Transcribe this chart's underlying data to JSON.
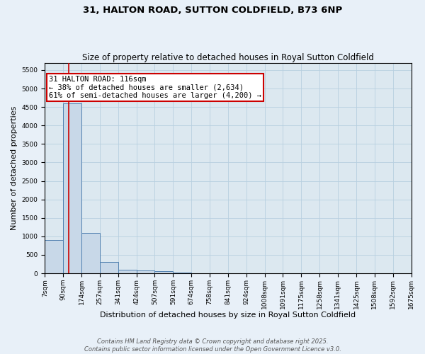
{
  "title": "31, HALTON ROAD, SUTTON COLDFIELD, B73 6NP",
  "subtitle": "Size of property relative to detached houses in Royal Sutton Coldfield",
  "xlabel": "Distribution of detached houses by size in Royal Sutton Coldfield",
  "ylabel": "Number of detached properties",
  "bin_labels": [
    "7sqm",
    "90sqm",
    "174sqm",
    "257sqm",
    "341sqm",
    "424sqm",
    "507sqm",
    "591sqm",
    "674sqm",
    "758sqm",
    "841sqm",
    "924sqm",
    "1008sqm",
    "1091sqm",
    "1175sqm",
    "1258sqm",
    "1341sqm",
    "1425sqm",
    "1508sqm",
    "1592sqm",
    "1675sqm"
  ],
  "bar_values": [
    900,
    4600,
    1100,
    300,
    90,
    70,
    50,
    30,
    0,
    0,
    0,
    0,
    0,
    0,
    0,
    0,
    0,
    0,
    0,
    0
  ],
  "bin_edges": [
    7,
    90,
    174,
    257,
    341,
    424,
    507,
    591,
    674,
    758,
    841,
    924,
    1008,
    1091,
    1175,
    1258,
    1341,
    1425,
    1508,
    1592,
    1675
  ],
  "property_size": 116,
  "bar_color": "#c8d8e8",
  "bar_edge_color": "#5080b0",
  "red_line_color": "#cc0000",
  "annotation_text": "31 HALTON ROAD: 116sqm\n← 38% of detached houses are smaller (2,634)\n61% of semi-detached houses are larger (4,200) →",
  "annotation_box_color": "#cc0000",
  "annotation_text_color": "#000000",
  "ylim": [
    0,
    5700
  ],
  "yticks": [
    0,
    500,
    1000,
    1500,
    2000,
    2500,
    3000,
    3500,
    4000,
    4500,
    5000,
    5500
  ],
  "grid_color": "#b8cfe0",
  "background_color": "#dce8f0",
  "fig_background_color": "#e8f0f8",
  "footer_text": "Contains HM Land Registry data © Crown copyright and database right 2025.\nContains public sector information licensed under the Open Government Licence v3.0.",
  "title_fontsize": 9.5,
  "subtitle_fontsize": 8.5,
  "xlabel_fontsize": 8,
  "ylabel_fontsize": 8,
  "tick_fontsize": 6.5,
  "annotation_fontsize": 7.5,
  "footer_fontsize": 6
}
